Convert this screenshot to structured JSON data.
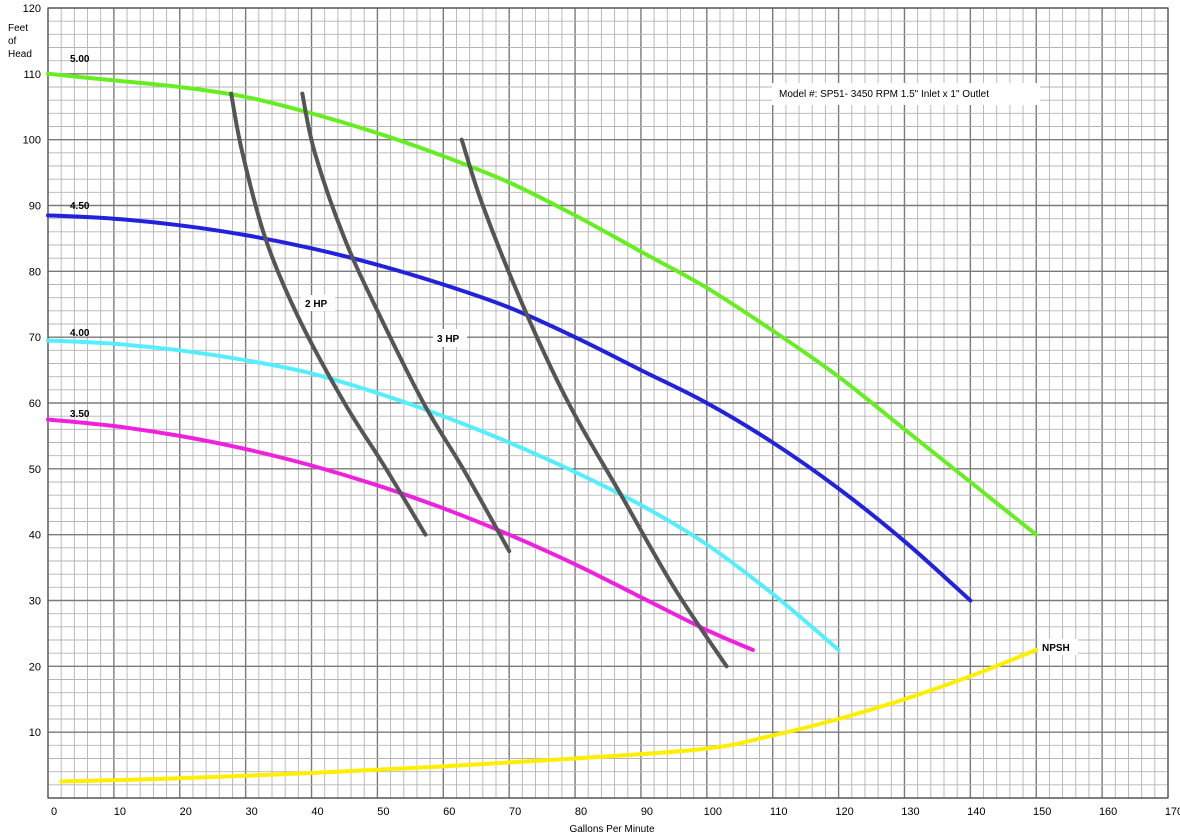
{
  "chart_data": {
    "type": "line",
    "title": "",
    "annotation": "Model #: SP51- 3450 RPM  1.5\" Inlet x 1\" Outlet",
    "xlabel": "Gallons Per Minute",
    "ylabel": "Feet of Head",
    "ylabel_lines": [
      "Feet",
      "of",
      "Head"
    ],
    "xlim": [
      0,
      170
    ],
    "ylim": [
      0,
      120
    ],
    "x_ticks": [
      "0",
      "10",
      "20",
      "30",
      "40",
      "50",
      "60",
      "70",
      "80",
      "90",
      "100",
      "110",
      "120",
      "130",
      "140",
      "150",
      "160",
      "170"
    ],
    "y_ticks": [
      "10",
      "20",
      "30",
      "40",
      "50",
      "60",
      "70",
      "80",
      "90",
      "100",
      "110",
      "120"
    ],
    "grid": true,
    "series": [
      {
        "name": "5.00",
        "kind": "impeller",
        "color": "#66ee22",
        "points": [
          [
            0,
            110
          ],
          [
            10,
            109
          ],
          [
            20,
            108
          ],
          [
            30,
            106.5
          ],
          [
            40,
            104
          ],
          [
            50,
            101
          ],
          [
            60,
            97.5
          ],
          [
            70,
            93.5
          ],
          [
            80,
            88.5
          ],
          [
            90,
            83
          ],
          [
            100,
            77.5
          ],
          [
            110,
            71
          ],
          [
            120,
            64
          ],
          [
            130,
            56
          ],
          [
            140,
            48
          ],
          [
            150,
            40
          ]
        ]
      },
      {
        "name": "4.50",
        "kind": "impeller",
        "color": "#2222dd",
        "points": [
          [
            0,
            88.5
          ],
          [
            10,
            88
          ],
          [
            20,
            87
          ],
          [
            30,
            85.5
          ],
          [
            40,
            83.5
          ],
          [
            50,
            81
          ],
          [
            60,
            78
          ],
          [
            70,
            74.5
          ],
          [
            80,
            70
          ],
          [
            90,
            65
          ],
          [
            100,
            60
          ],
          [
            110,
            54
          ],
          [
            120,
            47
          ],
          [
            130,
            39
          ],
          [
            140,
            30
          ]
        ]
      },
      {
        "name": "4.00",
        "kind": "impeller",
        "color": "#55eeff",
        "points": [
          [
            0,
            69.5
          ],
          [
            10,
            69
          ],
          [
            20,
            68
          ],
          [
            30,
            66.5
          ],
          [
            40,
            64.5
          ],
          [
            50,
            61.5
          ],
          [
            60,
            58
          ],
          [
            70,
            54
          ],
          [
            80,
            49.5
          ],
          [
            90,
            44.5
          ],
          [
            100,
            38.5
          ],
          [
            110,
            31
          ],
          [
            120,
            22.5
          ]
        ]
      },
      {
        "name": "3.50",
        "kind": "impeller",
        "color": "#ee22dd",
        "points": [
          [
            0,
            57.5
          ],
          [
            10,
            56.5
          ],
          [
            20,
            55
          ],
          [
            30,
            53
          ],
          [
            40,
            50.5
          ],
          [
            50,
            47.5
          ],
          [
            60,
            44
          ],
          [
            70,
            40
          ],
          [
            80,
            35.5
          ],
          [
            90,
            30.5
          ],
          [
            100,
            25.5
          ],
          [
            107,
            22.5
          ]
        ]
      },
      {
        "name": "2 HP",
        "kind": "horsepower",
        "color": "#555555",
        "points": [
          [
            27.8,
            107
          ],
          [
            29.5,
            98
          ],
          [
            33,
            85
          ],
          [
            38,
            73
          ],
          [
            45,
            60
          ],
          [
            51,
            50.5
          ],
          [
            57.3,
            40
          ]
        ]
      },
      {
        "name": "",
        "kind": "horsepower",
        "color": "#555555",
        "points": [
          [
            38.6,
            107
          ],
          [
            40.5,
            98
          ],
          [
            45,
            85
          ],
          [
            50,
            74
          ],
          [
            57,
            60
          ],
          [
            63,
            50
          ],
          [
            70,
            37.5
          ]
        ]
      },
      {
        "name": "3 HP",
        "kind": "horsepower",
        "color": "#555555",
        "points": [
          [
            62.8,
            100
          ],
          [
            66,
            90
          ],
          [
            72,
            75
          ],
          [
            79,
            60
          ],
          [
            87,
            46
          ],
          [
            95,
            32
          ],
          [
            103,
            20
          ]
        ]
      },
      {
        "name": "NPSH",
        "kind": "npsh",
        "color": "#ffee00",
        "points": [
          [
            2,
            2.5
          ],
          [
            20,
            3
          ],
          [
            40,
            3.8
          ],
          [
            60,
            4.8
          ],
          [
            80,
            6
          ],
          [
            100,
            7.5
          ],
          [
            110,
            9.5
          ],
          [
            120,
            12
          ],
          [
            130,
            15
          ],
          [
            140,
            18.5
          ],
          [
            150,
            22.5
          ]
        ]
      }
    ]
  },
  "labels": {
    "s500": "5.00",
    "s450": "4.50",
    "s400": "4.00",
    "s350": "3.50",
    "hp2": "2 HP",
    "hp3": "3 HP",
    "npsh": "NPSH"
  }
}
